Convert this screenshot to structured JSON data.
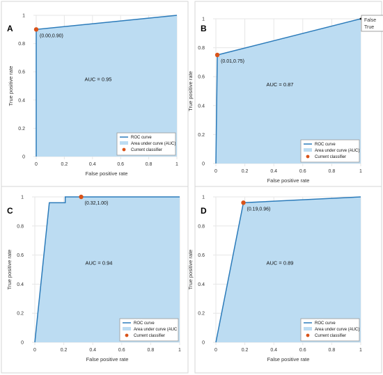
{
  "chart_data": [
    {
      "panel": "A",
      "type": "line",
      "x": [
        0,
        0,
        1
      ],
      "y": [
        0,
        0.9,
        1
      ],
      "xlabel": "False positive rate",
      "ylabel": "True positive rate",
      "xlim": [
        0,
        1
      ],
      "ylim": [
        0,
        1
      ],
      "xticks": [
        "0",
        "0.2",
        "0.4",
        "0.6",
        "0.8",
        "1"
      ],
      "yticks": [
        "0",
        "0.2",
        "0.4",
        "0.6",
        "0.8",
        "1"
      ],
      "auc_text": "AUC = 0.95",
      "current_classifier": {
        "x": 0.0,
        "y": 0.9,
        "label": "(0.00,0.90)"
      },
      "legend": [
        "ROC curve",
        "Area under curve (AUC)",
        "Current classifier"
      ],
      "legend_position": "bottom-right",
      "grid": true
    },
    {
      "panel": "B",
      "type": "line",
      "x": [
        0,
        0.01,
        1
      ],
      "y": [
        0,
        0.75,
        1
      ],
      "xlabel": "False positive rate",
      "ylabel": "True positive rate",
      "xlim": [
        0,
        1
      ],
      "ylim": [
        0,
        1
      ],
      "xticks": [
        "0",
        "0.2",
        "0.4",
        "0.6",
        "0.8",
        "1"
      ],
      "yticks": [
        "0",
        "0.2",
        "0.4",
        "0.6",
        "0.8",
        "1"
      ],
      "auc_text": "AUC = 0.87",
      "current_classifier": {
        "x": 0.01,
        "y": 0.75,
        "label": "(0.01,0.75)"
      },
      "legend": [
        "ROC curve",
        "Area under curve (AUC)",
        "Current classifier"
      ],
      "legend_position": "bottom-right",
      "grid": true,
      "tooltip": [
        "False",
        "True"
      ]
    },
    {
      "panel": "C",
      "type": "line",
      "x": [
        0,
        0.1,
        0.1,
        0.21,
        0.21,
        0.32,
        1
      ],
      "y": [
        0,
        0.96,
        0.96,
        0.96,
        1.0,
        1.0,
        1.0
      ],
      "xlabel": "False positive rate",
      "ylabel": "True positive rate",
      "xlim": [
        0,
        1
      ],
      "ylim": [
        0,
        1
      ],
      "xticks": [
        "0",
        "0.2",
        "0.4",
        "0.6",
        "0.8",
        "1"
      ],
      "yticks": [
        "0",
        "0.2",
        "0.4",
        "0.6",
        "0.8",
        "1"
      ],
      "auc_text": "AUC = 0.94",
      "current_classifier": {
        "x": 0.32,
        "y": 1.0,
        "label": "(0.32,1.00)"
      },
      "legend": [
        "ROC curve",
        "Area under curve (AUC",
        "Current classifier"
      ],
      "legend_position": "bottom-right",
      "grid": true
    },
    {
      "panel": "D",
      "type": "line",
      "x": [
        0,
        0.19,
        1
      ],
      "y": [
        0,
        0.96,
        1
      ],
      "xlabel": "False positive rate",
      "ylabel": "True positive rate",
      "xlim": [
        0,
        1
      ],
      "ylim": [
        0,
        1
      ],
      "xticks": [
        "0",
        "0.2",
        "0.4",
        "0.6",
        "0.8",
        "1"
      ],
      "yticks": [
        "0",
        "0.2",
        "0.4",
        "0.6",
        "0.8",
        "1"
      ],
      "auc_text": "AUC = 0.89",
      "current_classifier": {
        "x": 0.19,
        "y": 0.96,
        "label": "(0.19,0.96)"
      },
      "legend": [
        "ROC curve",
        "Area under curve (AUC)",
        "Current classifier"
      ],
      "legend_position": "bottom-right",
      "grid": true
    }
  ],
  "colors": {
    "curve": "#2b7bba",
    "area": "#bcdcf2",
    "marker": "#d95319"
  }
}
